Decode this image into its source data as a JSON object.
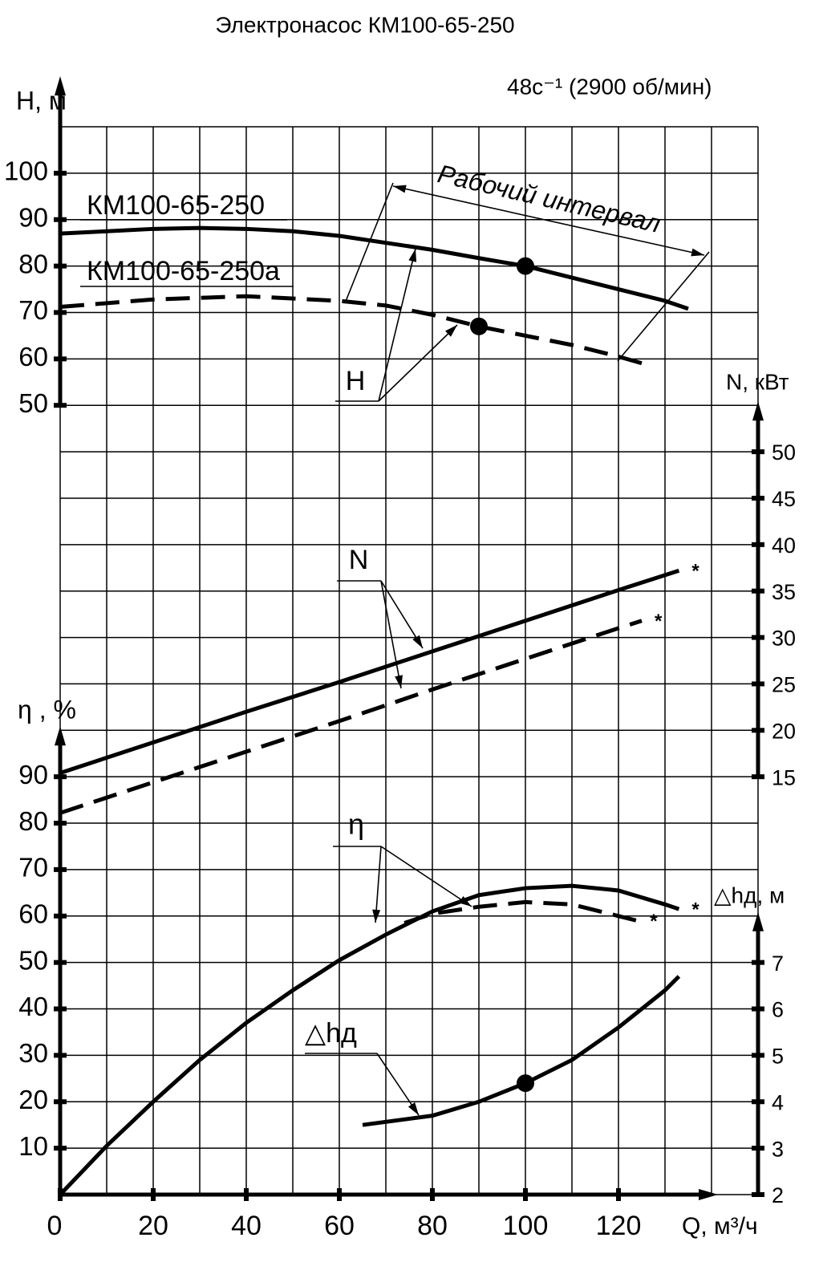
{
  "title": "Электронасос КМ100-65-250",
  "subtitle": "48с⁻¹ (2900 об/мин)",
  "chart_data": [
    {
      "type": "line",
      "y_label": "H, м",
      "xlim": [
        0,
        150
      ],
      "ylim": [
        50,
        110
      ],
      "yticks": [
        50,
        60,
        70,
        80,
        90,
        100
      ],
      "axis_side": "left",
      "interval_label": "Рабочий интервал",
      "annotation": "H",
      "series": [
        {
          "name": "КМ100-65-250",
          "color": "#000000",
          "dash": false,
          "x": [
            0,
            10,
            20,
            30,
            40,
            50,
            60,
            70,
            80,
            90,
            100,
            110,
            120,
            130,
            135
          ],
          "values": [
            87,
            87.5,
            88,
            88.2,
            88,
            87.5,
            86.5,
            85,
            83.5,
            81.7,
            80,
            77.5,
            75,
            72.5,
            70.8
          ]
        },
        {
          "name": "КМ100-65-250а",
          "color": "#000000",
          "dash": true,
          "x": [
            0,
            20,
            40,
            60,
            70,
            80,
            90,
            100,
            110,
            120,
            127
          ],
          "values": [
            71.2,
            72.8,
            73.5,
            72.5,
            71.5,
            69.5,
            67,
            65,
            63,
            60.5,
            58.5
          ]
        }
      ],
      "markers": [
        {
          "x": 100,
          "y": 80
        },
        {
          "x": 90,
          "y": 67
        }
      ]
    },
    {
      "type": "line",
      "y_label": "N, кВт",
      "xlim": [
        0,
        150
      ],
      "ylim": [
        15,
        55
      ],
      "yticks": [
        15,
        20,
        25,
        30,
        35,
        40,
        45,
        50
      ],
      "axis_side": "right",
      "annotation": "N",
      "series": [
        {
          "color": "#000000",
          "dash": false,
          "end_label": "*",
          "x": [
            0,
            20,
            40,
            60,
            80,
            100,
            120,
            133
          ],
          "values": [
            15.4,
            18.7,
            22.0,
            25.2,
            28.5,
            31.8,
            35.1,
            37.2
          ]
        },
        {
          "color": "#000000",
          "dash": true,
          "end_label": "*",
          "x": [
            0,
            20,
            40,
            60,
            80,
            100,
            120,
            125
          ],
          "values": [
            11.1,
            14.4,
            17.7,
            21.0,
            24.4,
            27.7,
            31.0,
            31.8
          ]
        }
      ],
      "markers": []
    },
    {
      "type": "line",
      "y_label": "η , %",
      "xlim": [
        0,
        150
      ],
      "ylim": [
        0,
        100
      ],
      "yticks": [
        10,
        20,
        30,
        40,
        50,
        60,
        70,
        80,
        90
      ],
      "axis_side": "left",
      "xticks": [
        0,
        20,
        40,
        60,
        80,
        100,
        120
      ],
      "x_label": "Q, м³/ч",
      "annotation": "η",
      "series": [
        {
          "color": "#000000",
          "dash": false,
          "end_label": "*",
          "x": [
            0,
            10,
            20,
            30,
            40,
            50,
            60,
            70,
            80,
            90,
            100,
            110,
            120,
            130,
            133
          ],
          "values": [
            0,
            10.5,
            20,
            29,
            37,
            44,
            50.5,
            56,
            61,
            64.5,
            66,
            66.5,
            65.5,
            62.5,
            61.5
          ]
        },
        {
          "color": "#000000",
          "dash": true,
          "end_label": "*",
          "x": [
            74,
            80,
            90,
            100,
            110,
            120,
            124
          ],
          "values": [
            58.5,
            60.5,
            62,
            63,
            62.5,
            60,
            59
          ]
        }
      ],
      "markers": []
    },
    {
      "type": "line",
      "y_label": "△hд, м",
      "xlim": [
        0,
        150
      ],
      "ylim": [
        2,
        8
      ],
      "yticks": [
        2,
        3,
        4,
        5,
        6,
        7
      ],
      "axis_side": "right",
      "annotation": "△hд",
      "series": [
        {
          "color": "#000000",
          "dash": false,
          "x": [
            65,
            80,
            90,
            100,
            110,
            120,
            130,
            133
          ],
          "values": [
            3.5,
            3.7,
            4.0,
            4.4,
            4.9,
            5.6,
            6.4,
            6.7
          ]
        }
      ],
      "markers": [
        {
          "x": 100,
          "y": 4.4
        }
      ]
    }
  ]
}
